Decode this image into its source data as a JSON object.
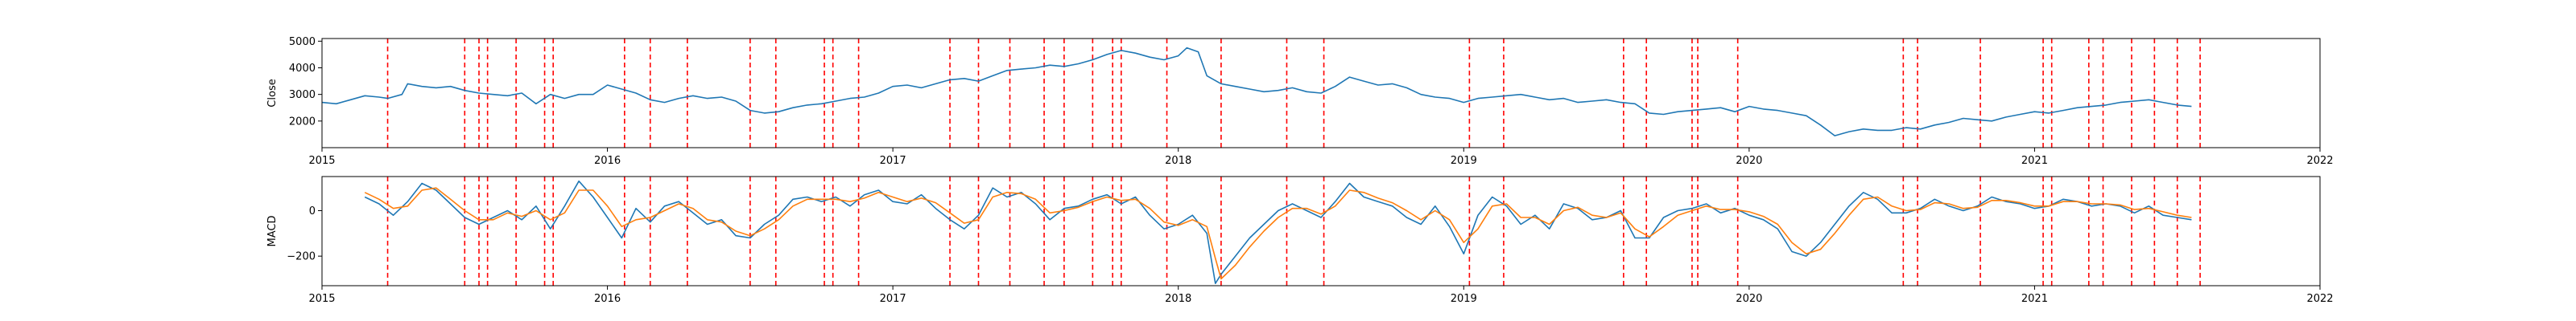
{
  "chart_data": [
    {
      "type": "line",
      "ylabel": "Close",
      "xlim": [
        2015.0,
        2022.0
      ],
      "ylim": [
        1000,
        5100
      ],
      "xticks": [
        2015,
        2016,
        2017,
        2018,
        2019,
        2020,
        2021,
        2022
      ],
      "xtick_labels": [
        "2015",
        "2016",
        "2017",
        "2018",
        "2019",
        "2020",
        "2021",
        "2022"
      ],
      "yticks": [
        2000,
        3000,
        4000,
        5000
      ],
      "ytick_labels": [
        "2000",
        "3000",
        "4000",
        "5000"
      ],
      "series": [
        {
          "color": "#1f77b4",
          "x": [
            2015.0,
            2015.05,
            2015.1,
            2015.15,
            2015.2,
            2015.23,
            2015.28,
            2015.3,
            2015.35,
            2015.4,
            2015.45,
            2015.5,
            2015.55,
            2015.6,
            2015.65,
            2015.7,
            2015.75,
            2015.8,
            2015.85,
            2015.9,
            2015.95,
            2016.0,
            2016.05,
            2016.1,
            2016.15,
            2016.2,
            2016.25,
            2016.3,
            2016.35,
            2016.4,
            2016.45,
            2016.5,
            2016.55,
            2016.6,
            2016.65,
            2016.7,
            2016.75,
            2016.8,
            2016.85,
            2016.9,
            2016.95,
            2017.0,
            2017.05,
            2017.1,
            2017.15,
            2017.2,
            2017.25,
            2017.3,
            2017.35,
            2017.4,
            2017.45,
            2017.5,
            2017.55,
            2017.6,
            2017.65,
            2017.7,
            2017.75,
            2017.8,
            2017.85,
            2017.9,
            2017.95,
            2018.0,
            2018.03,
            2018.07,
            2018.1,
            2018.15,
            2018.2,
            2018.25,
            2018.3,
            2018.35,
            2018.4,
            2018.45,
            2018.5,
            2018.55,
            2018.6,
            2018.65,
            2018.7,
            2018.75,
            2018.8,
            2018.85,
            2018.9,
            2018.95,
            2019.0,
            2019.05,
            2019.1,
            2019.15,
            2019.2,
            2019.25,
            2019.3,
            2019.35,
            2019.4,
            2019.45,
            2019.5,
            2019.55,
            2019.6,
            2019.65,
            2019.7,
            2019.75,
            2019.8,
            2019.85,
            2019.9,
            2019.95,
            2020.0,
            2020.05,
            2020.1,
            2020.15,
            2020.2,
            2020.25,
            2020.3,
            2020.35,
            2020.4,
            2020.45,
            2020.5,
            2020.55,
            2020.6,
            2020.65,
            2020.7,
            2020.75,
            2020.8,
            2020.85,
            2020.9,
            2020.95,
            2021.0,
            2021.05,
            2021.1,
            2021.15,
            2021.2,
            2021.25,
            2021.3,
            2021.35,
            2021.4,
            2021.45,
            2021.5,
            2021.55
          ],
          "values": [
            2700,
            2650,
            2800,
            2950,
            2900,
            2850,
            3000,
            3400,
            3300,
            3250,
            3300,
            3150,
            3050,
            3000,
            2950,
            3050,
            2650,
            3000,
            2850,
            3000,
            3000,
            3350,
            3200,
            3050,
            2800,
            2700,
            2850,
            2950,
            2850,
            2900,
            2750,
            2400,
            2300,
            2350,
            2500,
            2600,
            2650,
            2750,
            2850,
            2900,
            3050,
            3300,
            3350,
            3250,
            3400,
            3550,
            3600,
            3500,
            3700,
            3900,
            3950,
            4000,
            4100,
            4050,
            4150,
            4300,
            4500,
            4650,
            4550,
            4400,
            4300,
            4450,
            4750,
            4600,
            3700,
            3400,
            3300,
            3200,
            3100,
            3150,
            3250,
            3100,
            3050,
            3300,
            3650,
            3500,
            3350,
            3400,
            3250,
            3000,
            2900,
            2850,
            2700,
            2850,
            2900,
            2950,
            3000,
            2900,
            2800,
            2850,
            2700,
            2750,
            2800,
            2700,
            2650,
            2300,
            2250,
            2350,
            2400,
            2450,
            2500,
            2350,
            2550,
            2450,
            2400,
            2300,
            2200,
            1850,
            1450,
            1600,
            1700,
            1650,
            1650,
            1750,
            1700,
            1850,
            1950,
            2100,
            2050,
            2000,
            2150,
            2250,
            2350,
            2300,
            2400,
            2500,
            2550,
            2600,
            2700,
            2750,
            2800,
            2700,
            2600,
            2550
          ]
        }
      ],
      "events": [
        2015.23,
        2015.5,
        2015.55,
        2015.58,
        2015.68,
        2015.78,
        2015.81,
        2016.06,
        2016.15,
        2016.28,
        2016.5,
        2016.59,
        2016.76,
        2016.79,
        2016.88,
        2017.2,
        2017.3,
        2017.41,
        2017.53,
        2017.6,
        2017.7,
        2017.77,
        2017.8,
        2017.96,
        2018.15,
        2018.38,
        2018.51,
        2019.02,
        2019.14,
        2019.56,
        2019.64,
        2019.8,
        2019.82,
        2019.96,
        2020.54,
        2020.59,
        2020.81,
        2021.03,
        2021.06,
        2021.19,
        2021.24,
        2021.34,
        2021.42,
        2021.5,
        2021.58
      ]
    },
    {
      "type": "line",
      "ylabel": "MACD",
      "xlim": [
        2015.0,
        2022.0
      ],
      "ylim": [
        -330,
        150
      ],
      "xticks": [
        2015,
        2016,
        2017,
        2018,
        2019,
        2020,
        2021,
        2022
      ],
      "xtick_labels": [
        "2015",
        "2016",
        "2017",
        "2018",
        "2019",
        "2020",
        "2021",
        "2022"
      ],
      "yticks": [
        -200,
        0
      ],
      "ytick_labels": [
        "−200",
        "0"
      ],
      "series": [
        {
          "color": "#1f77b4",
          "x": [
            2015.15,
            2015.2,
            2015.25,
            2015.3,
            2015.35,
            2015.4,
            2015.45,
            2015.5,
            2015.55,
            2015.6,
            2015.65,
            2015.7,
            2015.75,
            2015.8,
            2015.85,
            2015.9,
            2015.95,
            2016.0,
            2016.05,
            2016.1,
            2016.15,
            2016.2,
            2016.25,
            2016.3,
            2016.35,
            2016.4,
            2016.45,
            2016.5,
            2016.55,
            2016.6,
            2016.65,
            2016.7,
            2016.75,
            2016.8,
            2016.85,
            2016.9,
            2016.95,
            2017.0,
            2017.05,
            2017.1,
            2017.15,
            2017.2,
            2017.25,
            2017.3,
            2017.35,
            2017.4,
            2017.45,
            2017.5,
            2017.55,
            2017.6,
            2017.65,
            2017.7,
            2017.75,
            2017.8,
            2017.85,
            2017.9,
            2017.95,
            2018.0,
            2018.05,
            2018.1,
            2018.13,
            2018.15,
            2018.2,
            2018.25,
            2018.3,
            2018.35,
            2018.4,
            2018.45,
            2018.5,
            2018.55,
            2018.6,
            2018.65,
            2018.7,
            2018.75,
            2018.8,
            2018.85,
            2018.9,
            2018.95,
            2019.0,
            2019.05,
            2019.1,
            2019.15,
            2019.2,
            2019.25,
            2019.3,
            2019.35,
            2019.4,
            2019.45,
            2019.5,
            2019.55,
            2019.6,
            2019.65,
            2019.7,
            2019.75,
            2019.8,
            2019.85,
            2019.9,
            2019.95,
            2020.0,
            2020.05,
            2020.1,
            2020.15,
            2020.2,
            2020.25,
            2020.3,
            2020.35,
            2020.4,
            2020.45,
            2020.5,
            2020.55,
            2020.6,
            2020.65,
            2020.7,
            2020.75,
            2020.8,
            2020.85,
            2020.9,
            2020.95,
            2021.0,
            2021.05,
            2021.1,
            2021.15,
            2021.2,
            2021.25,
            2021.3,
            2021.35,
            2021.4,
            2021.45,
            2021.5,
            2021.55
          ],
          "values": [
            60,
            30,
            -20,
            40,
            120,
            90,
            30,
            -30,
            -60,
            -30,
            0,
            -40,
            20,
            -80,
            20,
            130,
            60,
            -30,
            -120,
            10,
            -50,
            20,
            40,
            -10,
            -60,
            -40,
            -110,
            -120,
            -60,
            -20,
            50,
            60,
            40,
            60,
            20,
            70,
            90,
            40,
            30,
            70,
            10,
            -40,
            -80,
            -20,
            100,
            60,
            80,
            30,
            -40,
            10,
            20,
            50,
            70,
            30,
            60,
            -20,
            -80,
            -60,
            -20,
            -100,
            -320,
            -280,
            -200,
            -120,
            -60,
            0,
            30,
            0,
            -30,
            40,
            120,
            60,
            40,
            20,
            -30,
            -60,
            20,
            -70,
            -190,
            -20,
            60,
            20,
            -60,
            -20,
            -80,
            30,
            10,
            -40,
            -30,
            0,
            -120,
            -120,
            -30,
            0,
            10,
            30,
            -10,
            10,
            -20,
            -40,
            -80,
            -180,
            -200,
            -140,
            -60,
            20,
            80,
            50,
            -10,
            -10,
            10,
            50,
            20,
            0,
            20,
            60,
            40,
            30,
            10,
            20,
            50,
            40,
            20,
            30,
            20,
            -10,
            20,
            -20,
            -30,
            -40
          ],
          "name": ""
        },
        {
          "color": "#ff7f0e",
          "x": [
            2015.15,
            2015.2,
            2015.25,
            2015.3,
            2015.35,
            2015.4,
            2015.45,
            2015.5,
            2015.55,
            2015.6,
            2015.65,
            2015.7,
            2015.75,
            2015.8,
            2015.85,
            2015.9,
            2015.95,
            2016.0,
            2016.05,
            2016.1,
            2016.15,
            2016.2,
            2016.25,
            2016.3,
            2016.35,
            2016.4,
            2016.45,
            2016.5,
            2016.55,
            2016.6,
            2016.65,
            2016.7,
            2016.75,
            2016.8,
            2016.85,
            2016.9,
            2016.95,
            2017.0,
            2017.05,
            2017.1,
            2017.15,
            2017.2,
            2017.25,
            2017.3,
            2017.35,
            2017.4,
            2017.45,
            2017.5,
            2017.55,
            2017.6,
            2017.65,
            2017.7,
            2017.75,
            2017.8,
            2017.85,
            2017.9,
            2017.95,
            2018.0,
            2018.05,
            2018.1,
            2018.13,
            2018.15,
            2018.2,
            2018.25,
            2018.3,
            2018.35,
            2018.4,
            2018.45,
            2018.5,
            2018.55,
            2018.6,
            2018.65,
            2018.7,
            2018.75,
            2018.8,
            2018.85,
            2018.9,
            2018.95,
            2019.0,
            2019.05,
            2019.1,
            2019.15,
            2019.2,
            2019.25,
            2019.3,
            2019.35,
            2019.4,
            2019.45,
            2019.5,
            2019.55,
            2019.6,
            2019.65,
            2019.7,
            2019.75,
            2019.8,
            2019.85,
            2019.9,
            2019.95,
            2020.0,
            2020.05,
            2020.1,
            2020.15,
            2020.2,
            2020.25,
            2020.3,
            2020.35,
            2020.4,
            2020.45,
            2020.5,
            2020.55,
            2020.6,
            2020.65,
            2020.7,
            2020.75,
            2020.8,
            2020.85,
            2020.9,
            2020.95,
            2021.0,
            2021.05,
            2021.1,
            2021.15,
            2021.2,
            2021.25,
            2021.3,
            2021.35,
            2021.4,
            2021.45,
            2021.5,
            2021.55
          ],
          "values": [
            80,
            50,
            10,
            20,
            90,
            100,
            50,
            0,
            -40,
            -40,
            -10,
            -25,
            0,
            -40,
            -10,
            90,
            90,
            20,
            -70,
            -40,
            -30,
            0,
            30,
            10,
            -40,
            -50,
            -90,
            -110,
            -80,
            -40,
            20,
            50,
            50,
            50,
            40,
            55,
            80,
            60,
            40,
            55,
            35,
            -10,
            -55,
            -40,
            60,
            80,
            75,
            50,
            -10,
            0,
            15,
            40,
            60,
            45,
            50,
            10,
            -50,
            -65,
            -40,
            -70,
            -210,
            -300,
            -240,
            -160,
            -90,
            -30,
            10,
            10,
            -15,
            20,
            90,
            80,
            55,
            35,
            0,
            -40,
            0,
            -40,
            -140,
            -80,
            20,
            30,
            -30,
            -30,
            -60,
            0,
            15,
            -20,
            -30,
            -10,
            -80,
            -115,
            -70,
            -20,
            0,
            20,
            5,
            5,
            -5,
            -25,
            -60,
            -140,
            -190,
            -170,
            -100,
            -20,
            50,
            60,
            20,
            0,
            5,
            35,
            30,
            10,
            15,
            45,
            45,
            35,
            20,
            20,
            40,
            40,
            30,
            30,
            25,
            5,
            10,
            -5,
            -20,
            -30
          ],
          "name": ""
        }
      ],
      "events": [
        2015.23,
        2015.5,
        2015.55,
        2015.58,
        2015.68,
        2015.78,
        2015.81,
        2016.06,
        2016.15,
        2016.28,
        2016.5,
        2016.59,
        2016.76,
        2016.79,
        2016.88,
        2017.2,
        2017.3,
        2017.41,
        2017.53,
        2017.6,
        2017.7,
        2017.77,
        2017.8,
        2017.96,
        2018.15,
        2018.38,
        2018.51,
        2019.02,
        2019.14,
        2019.56,
        2019.64,
        2019.8,
        2019.82,
        2019.96,
        2020.54,
        2020.59,
        2020.81,
        2021.03,
        2021.06,
        2021.19,
        2021.24,
        2021.34,
        2021.42,
        2021.5,
        2021.58
      ]
    }
  ],
  "colors": {
    "event_line": "#ff0000",
    "close_line": "#1f77b4",
    "signal_line": "#ff7f0e"
  }
}
